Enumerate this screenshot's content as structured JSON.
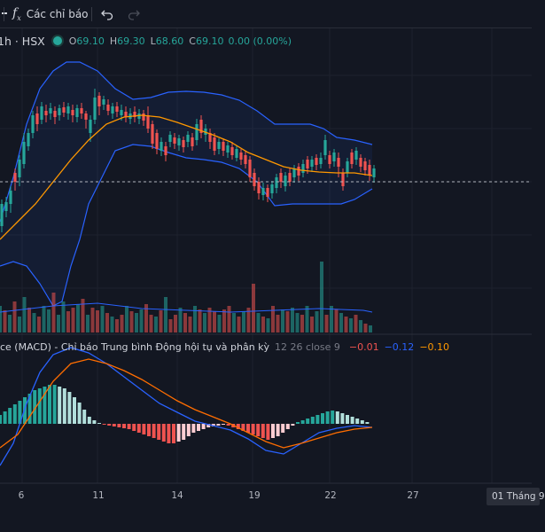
{
  "toolbar": {
    "indicators_label": "Các chỉ báo"
  },
  "legend": {
    "symbol_text": "1h · HSX",
    "open_key": "O",
    "open_value": "69.10",
    "high_key": "H",
    "high_value": "69.30",
    "low_key": "L",
    "low_value": "68.60",
    "close_key": "C",
    "close_value": "69.10",
    "change_value": "0.00 (0.00%)"
  },
  "macd_legend": {
    "title": "ce (MACD) - Chỉ báo Trung bình Động hội tụ và phân kỳ",
    "params": "12 26 close 9",
    "val1": "−0.01",
    "val2": "−0.12",
    "val3": "−0.10"
  },
  "time_axis": {
    "labels": [
      "6",
      "11",
      "14",
      "19",
      "22",
      "27"
    ],
    "current_date": "01 Tháng 9"
  },
  "colors": {
    "up": "#26a69a",
    "down": "#ef5350",
    "bollinger": "#2962ff",
    "ma": "#ff9800",
    "macd_line": "#2962ff",
    "signal_line": "#ff6d00",
    "background": "#131722"
  },
  "icons": {
    "fx": "fx-icon",
    "undo": "undo-icon",
    "redo": "redo-icon"
  }
}
